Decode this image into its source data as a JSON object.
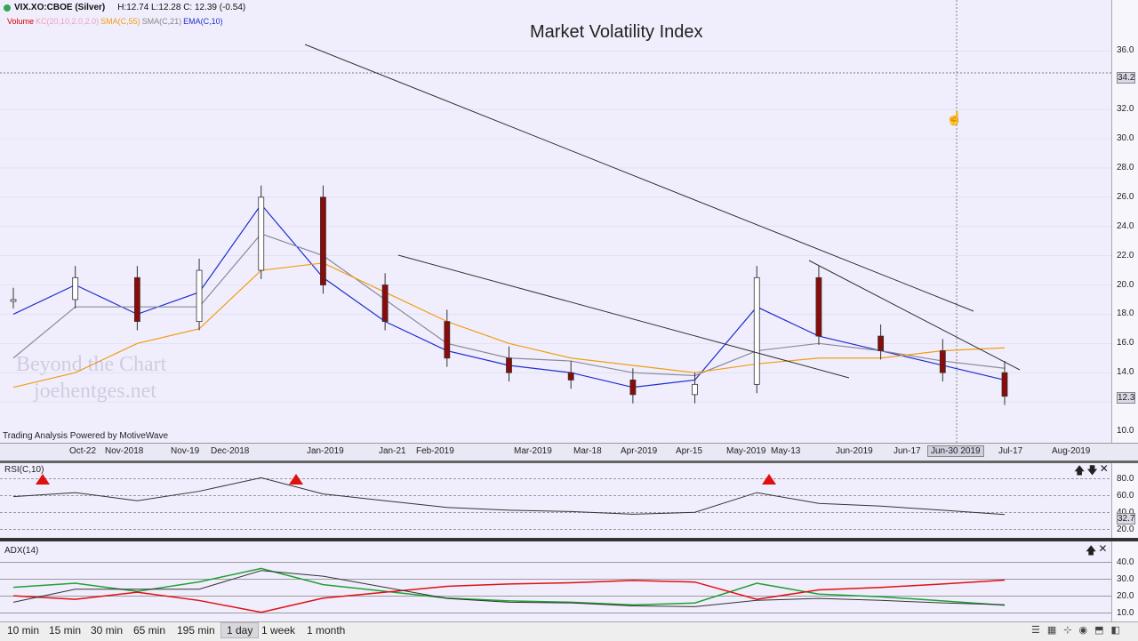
{
  "symbol": {
    "name": "VIX.XO:CBOE (Silver)",
    "stats": "H:12.74  L:12.28  C: 12.39 (-0.54)",
    "indicators": [
      {
        "label": "Volume",
        "color": "#d10000"
      },
      {
        "label": "KC(20,10,2.0,2.0)",
        "color": "#f0a0c0"
      },
      {
        "label": "SMA(C,55)",
        "color": "#f39c12"
      },
      {
        "label": "SMA(C,21)",
        "color": "#888888"
      },
      {
        "label": "EMA(C,10)",
        "color": "#1f2fd1"
      }
    ]
  },
  "powered_by": "Trading Analysis Powered by MotiveWave",
  "watermark": {
    "line1": "Beyond the Chart",
    "line2": "joehentges.net"
  },
  "x_axis": {
    "labels": [
      "Oct-22",
      "Nov-2018",
      "Nov-19",
      "Dec-2018",
      "Jan-2019",
      "Jan-21",
      "Feb-2019",
      "Mar-2019",
      "Mar-18",
      "Apr-2019",
      "Apr-15",
      "May-2019",
      "May-13",
      "Jun-2019",
      "Jun-17",
      "Jul-17",
      "Aug-2019"
    ],
    "crosshair_label": "Jun-30 2019"
  },
  "y_axis": {
    "ticks": [
      "36.0",
      "34.2",
      "32.0",
      "30.0",
      "28.0",
      "26.0",
      "24.0",
      "22.0",
      "20.0",
      "18.0",
      "16.0",
      "14.0",
      "12.3",
      "10.0"
    ]
  },
  "rsi_panel": {
    "label": "RSI(C,10)",
    "ticks": [
      "80.0",
      "60.0",
      "40.0",
      "32.7",
      "20.0"
    ]
  },
  "adx_panel": {
    "label": "ADX(14)",
    "ticks": [
      "40.0",
      "30.0",
      "20.0",
      "10.0"
    ]
  },
  "timeframes": [
    "10 min",
    "15 min",
    "30 min",
    "65 min",
    "195 min",
    "1 day",
    "1 week",
    "1 month"
  ],
  "active_timeframe": "1 day",
  "panel_buttons": {
    "up": "🡅",
    "down": "🡇",
    "close": "✕"
  },
  "colors": {
    "background": "#f0eefc",
    "up_candle": "#ffffff",
    "down_candle": "#8b0a0a",
    "ema10": "#1f2fd1",
    "sma21": "#8a8a9a",
    "sma55": "#f39c12",
    "keltner": "#f4a5c0",
    "rsi_peak": "#e01010",
    "adx_plus": "#20a030",
    "adx_minus": "#e01010"
  },
  "chart_data": {
    "type": "line",
    "title": "Market Volatility Index",
    "xlabel": "",
    "ylabel": "",
    "ylim": [
      10,
      37
    ],
    "x": [
      "Oct-22",
      "Nov-2018",
      "Nov-19",
      "Dec-2018",
      "Jan-2019",
      "Jan-21",
      "Feb-2019",
      "Mar-2019",
      "Mar-18",
      "Apr-2019",
      "Apr-15",
      "May-2019",
      "May-13",
      "Jun-2019",
      "Jun-17",
      "Jun-30 2019",
      "Jul-17"
    ],
    "series": [
      {
        "name": "VIX.XO:CBOE (Silver)",
        "values": [
          19.0,
          20.5,
          17.5,
          21.0,
          26.0,
          20.0,
          17.5,
          15.0,
          14.0,
          13.5,
          12.5,
          13.2,
          20.5,
          16.5,
          15.5,
          14.0,
          12.39
        ]
      },
      {
        "name": "EMA(C,10)",
        "values": [
          18.0,
          20.0,
          18.0,
          19.5,
          25.5,
          20.5,
          17.5,
          15.5,
          14.5,
          14.0,
          13.0,
          13.5,
          18.5,
          16.5,
          15.5,
          14.5,
          13.5
        ]
      },
      {
        "name": "SMA(C,21)",
        "values": [
          15.0,
          18.5,
          18.5,
          18.5,
          23.5,
          22.0,
          19.0,
          16.0,
          15.0,
          14.8,
          14.0,
          13.8,
          15.5,
          16.0,
          15.5,
          14.8,
          14.3
        ]
      },
      {
        "name": "SMA(C,55)",
        "values": [
          13.0,
          14.0,
          16.0,
          17.0,
          21.0,
          21.5,
          19.5,
          17.5,
          16.0,
          15.0,
          14.5,
          14.0,
          14.6,
          15.0,
          15.0,
          15.5,
          15.7
        ]
      }
    ],
    "annotations": [
      "Market Volatility Index"
    ]
  }
}
